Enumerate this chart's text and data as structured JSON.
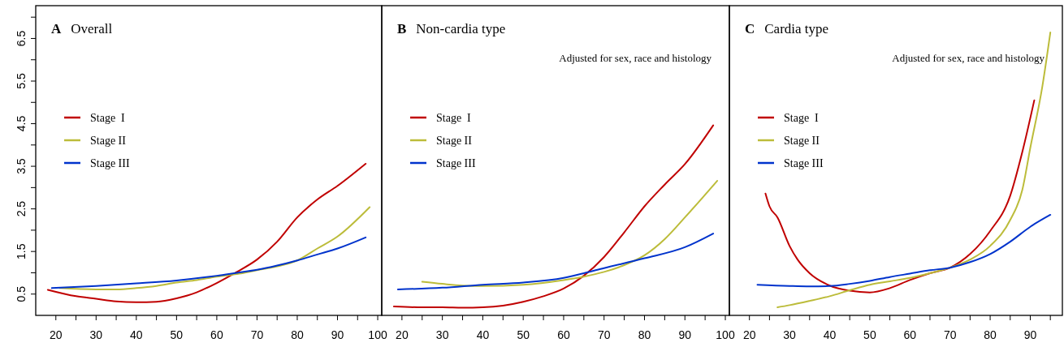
{
  "chart_data": [
    {
      "type": "line",
      "title": "A Overall",
      "legend": "left",
      "xlim": [
        15,
        101
      ],
      "ylim": [
        0,
        7.27
      ],
      "xticks": [
        20,
        {
          "value": 25,
          "label": null
        },
        30,
        {
          "value": 35,
          "label": null
        },
        40,
        {
          "value": 45,
          "label": null
        },
        50,
        {
          "value": 55,
          "label": null
        },
        60,
        {
          "value": 65,
          "label": null
        },
        70,
        {
          "value": 75,
          "label": null
        },
        80,
        {
          "value": 85,
          "label": null
        },
        90,
        {
          "value": 95,
          "label": null
        },
        100
      ],
      "yticks": [
        0.5,
        {
          "value": 1,
          "label": null
        },
        1.5,
        {
          "value": 2,
          "label": null
        },
        2.5,
        {
          "value": 3,
          "label": null
        },
        3.5,
        {
          "value": 4,
          "label": null
        },
        4.5,
        {
          "value": 5,
          "label": null
        },
        5.5,
        {
          "value": 6,
          "label": null
        },
        6.5,
        {
          "value": 7,
          "label": null
        }
      ],
      "series": [
        {
          "name": "Stage  I",
          "color": "#c00000",
          "x": [
            18,
            25,
            30,
            35,
            40,
            45,
            50,
            55,
            60,
            65,
            70,
            75,
            80,
            85,
            90,
            97
          ],
          "values": [
            0.6,
            0.45,
            0.39,
            0.33,
            0.31,
            0.32,
            0.4,
            0.54,
            0.76,
            1.02,
            1.31,
            1.73,
            2.3,
            2.72,
            3.04,
            3.56
          ]
        },
        {
          "name": "Stage II",
          "color": "#bcbc3a",
          "x": [
            21,
            30,
            35,
            40,
            45,
            50,
            55,
            60,
            65,
            70,
            75,
            80,
            85,
            90,
            98
          ],
          "values": [
            0.64,
            0.61,
            0.61,
            0.64,
            0.69,
            0.77,
            0.83,
            0.91,
            0.97,
            1.06,
            1.15,
            1.29,
            1.57,
            1.85,
            2.54
          ]
        },
        {
          "name": "Stage III",
          "color": "#0033cc",
          "x": [
            19,
            30,
            40,
            50,
            60,
            65,
            70,
            75,
            80,
            85,
            90,
            97
          ],
          "values": [
            0.64,
            0.69,
            0.75,
            0.82,
            0.93,
            1.0,
            1.07,
            1.17,
            1.29,
            1.43,
            1.57,
            1.83
          ]
        }
      ]
    },
    {
      "type": "line",
      "title": "B Non-cardia type",
      "subtitle": "Adjusted for sex, race and histology",
      "legend": "left",
      "tick_labels": "x",
      "xlim": [
        15,
        101
      ],
      "ylim": [
        0,
        7.27
      ],
      "xticks": [
        20,
        {
          "value": 25,
          "label": null
        },
        30,
        {
          "value": 35,
          "label": null
        },
        40,
        {
          "value": 45,
          "label": null
        },
        50,
        {
          "value": 55,
          "label": null
        },
        60,
        {
          "value": 65,
          "label": null
        },
        70,
        {
          "value": 75,
          "label": null
        },
        80,
        {
          "value": 85,
          "label": null
        },
        90,
        {
          "value": 95,
          "label": null
        },
        100
      ],
      "series": [
        {
          "name": "Stage  I",
          "color": "#c00000",
          "x": [
            18,
            25,
            30,
            35,
            40,
            45,
            50,
            55,
            60,
            65,
            70,
            75,
            80,
            85,
            90,
            97
          ],
          "values": [
            0.21,
            0.19,
            0.19,
            0.18,
            0.19,
            0.23,
            0.32,
            0.45,
            0.63,
            0.93,
            1.37,
            1.95,
            2.56,
            3.07,
            3.55,
            4.46
          ]
        },
        {
          "name": "Stage II",
          "color": "#bcbc3a",
          "x": [
            25,
            30,
            35,
            40,
            50,
            60,
            65,
            70,
            75,
            80,
            85,
            90,
            98
          ],
          "values": [
            0.79,
            0.74,
            0.7,
            0.69,
            0.72,
            0.83,
            0.91,
            1.02,
            1.18,
            1.41,
            1.79,
            2.3,
            3.16
          ]
        },
        {
          "name": "Stage III",
          "color": "#0033cc",
          "x": [
            19,
            30,
            40,
            50,
            60,
            65,
            70,
            80,
            90,
            97
          ],
          "values": [
            0.61,
            0.65,
            0.72,
            0.77,
            0.88,
            0.99,
            1.11,
            1.34,
            1.6,
            1.92
          ]
        }
      ]
    },
    {
      "type": "line",
      "title": "C Cardia type",
      "subtitle": "Adjusted for sex, race and histology",
      "legend": "left",
      "tick_labels": "x",
      "xlim": [
        15,
        98
      ],
      "ylim": [
        0,
        7.27
      ],
      "xticks": [
        20,
        {
          "value": 25,
          "label": null
        },
        30,
        {
          "value": 35,
          "label": null
        },
        40,
        {
          "value": 45,
          "label": null
        },
        50,
        {
          "value": 55,
          "label": null
        },
        60,
        {
          "value": 65,
          "label": null
        },
        70,
        {
          "value": 75,
          "label": null
        },
        80,
        {
          "value": 85,
          "label": null
        },
        90,
        {
          "value": 95,
          "label": null
        }
      ],
      "series": [
        {
          "name": "Stage  I",
          "color": "#c00000",
          "x": [
            24,
            25,
            27,
            30,
            32,
            35,
            40,
            45,
            50,
            55,
            60,
            65,
            70,
            75,
            80,
            85,
            88,
            91
          ],
          "values": [
            2.86,
            2.56,
            2.3,
            1.63,
            1.31,
            0.99,
            0.7,
            0.58,
            0.54,
            0.64,
            0.83,
            0.99,
            1.12,
            1.44,
            1.98,
            2.81,
            3.83,
            5.05
          ]
        },
        {
          "name": "Stage II",
          "color": "#bcbc3a",
          "x": [
            27,
            30,
            35,
            40,
            45,
            50,
            55,
            60,
            65,
            70,
            75,
            80,
            85,
            88,
            90,
            93,
            95
          ],
          "values": [
            0.19,
            0.24,
            0.34,
            0.45,
            0.59,
            0.72,
            0.8,
            0.88,
            0.99,
            1.12,
            1.31,
            1.63,
            2.24,
            2.94,
            3.93,
            5.37,
            6.64
          ]
        },
        {
          "name": "Stage III",
          "color": "#0033cc",
          "x": [
            22,
            30,
            35,
            40,
            45,
            50,
            55,
            60,
            65,
            70,
            75,
            80,
            85,
            90,
            95
          ],
          "values": [
            0.72,
            0.69,
            0.68,
            0.69,
            0.74,
            0.81,
            0.9,
            0.98,
            1.06,
            1.12,
            1.25,
            1.44,
            1.73,
            2.08,
            2.36
          ]
        }
      ]
    }
  ]
}
